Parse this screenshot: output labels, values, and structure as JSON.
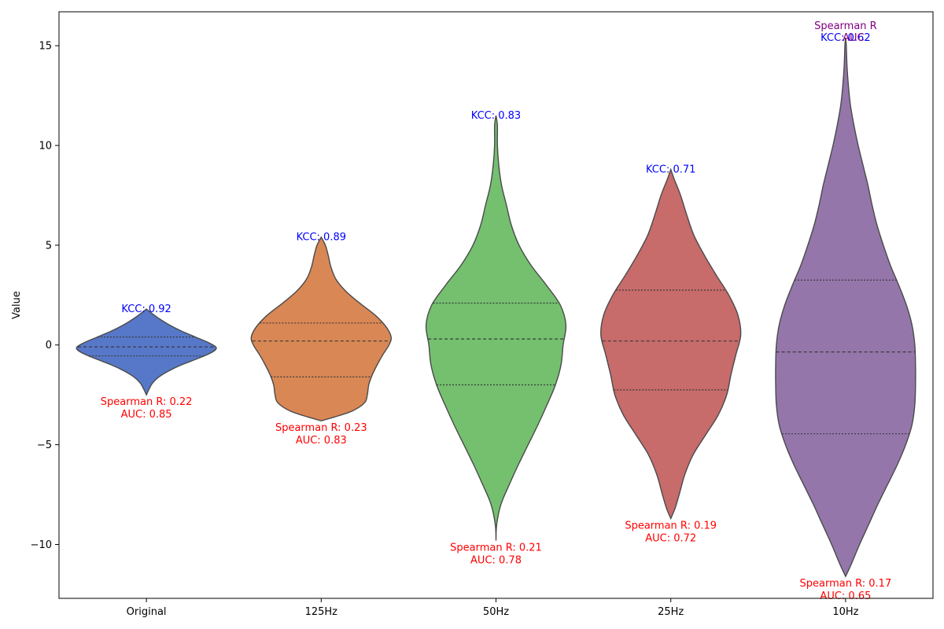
{
  "chart_data": {
    "type": "violin",
    "title": "",
    "xlabel": "",
    "ylabel": "Value",
    "ylim": [
      -12.7,
      16.7
    ],
    "yticks": [
      -10,
      -5,
      0,
      5,
      10,
      15
    ],
    "ytick_labels": [
      "−10",
      "−5",
      "0",
      "5",
      "10",
      "15"
    ],
    "categories": [
      "Original",
      "125Hz",
      "50Hz",
      "25Hz",
      "10Hz"
    ],
    "colors": [
      "#5778c8",
      "#d98755",
      "#74c06f",
      "#c76b6b",
      "#9476ab"
    ],
    "violins": [
      {
        "name": "Original",
        "min": -2.5,
        "max": 1.8,
        "q1": -0.55,
        "median": -0.1,
        "q3": 0.4,
        "profile": [
          [
            -2.5,
            0.0
          ],
          [
            -2.2,
            0.04
          ],
          [
            -1.9,
            0.09
          ],
          [
            -1.6,
            0.18
          ],
          [
            -1.3,
            0.32
          ],
          [
            -1.0,
            0.5
          ],
          [
            -0.7,
            0.72
          ],
          [
            -0.4,
            0.92
          ],
          [
            -0.15,
            1.0
          ],
          [
            0.1,
            0.9
          ],
          [
            0.4,
            0.7
          ],
          [
            0.7,
            0.5
          ],
          [
            1.0,
            0.33
          ],
          [
            1.3,
            0.19
          ],
          [
            1.55,
            0.09
          ],
          [
            1.8,
            0.0
          ]
        ]
      },
      {
        "name": "125Hz",
        "min": -3.8,
        "max": 5.4,
        "q1": -1.6,
        "median": 0.2,
        "q3": 1.1,
        "profile": [
          [
            -3.8,
            0.0
          ],
          [
            -3.6,
            0.2
          ],
          [
            -3.3,
            0.45
          ],
          [
            -2.9,
            0.62
          ],
          [
            -2.5,
            0.66
          ],
          [
            -2.0,
            0.68
          ],
          [
            -1.5,
            0.73
          ],
          [
            -1.0,
            0.8
          ],
          [
            -0.5,
            0.88
          ],
          [
            0.0,
            0.97
          ],
          [
            0.4,
            1.0
          ],
          [
            0.9,
            0.93
          ],
          [
            1.5,
            0.77
          ],
          [
            2.1,
            0.55
          ],
          [
            2.7,
            0.35
          ],
          [
            3.3,
            0.21
          ],
          [
            3.9,
            0.14
          ],
          [
            4.5,
            0.1
          ],
          [
            5.0,
            0.06
          ],
          [
            5.4,
            0.0
          ]
        ]
      },
      {
        "name": "50Hz",
        "min": -9.8,
        "max": 11.5,
        "q1": -2.0,
        "median": 0.3,
        "q3": 2.1,
        "profile": [
          [
            -9.8,
            0.0
          ],
          [
            -9.0,
            0.01
          ],
          [
            -8.0,
            0.07
          ],
          [
            -7.0,
            0.19
          ],
          [
            -6.0,
            0.32
          ],
          [
            -5.0,
            0.46
          ],
          [
            -4.0,
            0.6
          ],
          [
            -3.0,
            0.73
          ],
          [
            -2.0,
            0.85
          ],
          [
            -1.0,
            0.93
          ],
          [
            0.0,
            0.96
          ],
          [
            1.0,
            1.0
          ],
          [
            2.0,
            0.92
          ],
          [
            3.0,
            0.72
          ],
          [
            4.0,
            0.5
          ],
          [
            5.0,
            0.33
          ],
          [
            6.0,
            0.22
          ],
          [
            7.0,
            0.15
          ],
          [
            8.0,
            0.08
          ],
          [
            9.0,
            0.04
          ],
          [
            10.0,
            0.02
          ],
          [
            11.0,
            0.02
          ],
          [
            11.5,
            0.0
          ]
        ]
      },
      {
        "name": "25Hz",
        "min": -8.7,
        "max": 8.8,
        "q1": -2.25,
        "median": 0.2,
        "q3": 2.75,
        "profile": [
          [
            -8.7,
            0.0
          ],
          [
            -8.2,
            0.06
          ],
          [
            -7.5,
            0.12
          ],
          [
            -6.5,
            0.2
          ],
          [
            -5.5,
            0.32
          ],
          [
            -4.5,
            0.5
          ],
          [
            -3.5,
            0.68
          ],
          [
            -2.5,
            0.8
          ],
          [
            -1.5,
            0.86
          ],
          [
            -0.5,
            0.93
          ],
          [
            0.5,
            1.0
          ],
          [
            1.5,
            0.96
          ],
          [
            2.5,
            0.83
          ],
          [
            3.5,
            0.65
          ],
          [
            4.5,
            0.48
          ],
          [
            5.5,
            0.33
          ],
          [
            6.5,
            0.23
          ],
          [
            7.5,
            0.14
          ],
          [
            8.3,
            0.05
          ],
          [
            8.8,
            0.0
          ]
        ]
      },
      {
        "name": "10Hz",
        "min": -11.6,
        "max": 15.4,
        "q1": -4.45,
        "median": -0.35,
        "q3": 3.25,
        "profile": [
          [
            -11.6,
            0.0
          ],
          [
            -11.0,
            0.08
          ],
          [
            -10.0,
            0.2
          ],
          [
            -9.0,
            0.33
          ],
          [
            -8.0,
            0.46
          ],
          [
            -7.0,
            0.6
          ],
          [
            -6.0,
            0.74
          ],
          [
            -5.0,
            0.86
          ],
          [
            -4.0,
            0.95
          ],
          [
            -3.0,
            0.99
          ],
          [
            -2.0,
            1.0
          ],
          [
            -1.0,
            1.0
          ],
          [
            0.0,
            0.99
          ],
          [
            1.0,
            0.95
          ],
          [
            2.0,
            0.87
          ],
          [
            3.0,
            0.76
          ],
          [
            4.0,
            0.64
          ],
          [
            5.0,
            0.54
          ],
          [
            6.0,
            0.45
          ],
          [
            7.0,
            0.38
          ],
          [
            8.0,
            0.32
          ],
          [
            9.0,
            0.25
          ],
          [
            10.0,
            0.18
          ],
          [
            11.0,
            0.12
          ],
          [
            12.0,
            0.07
          ],
          [
            13.0,
            0.04
          ],
          [
            14.0,
            0.02
          ],
          [
            15.0,
            0.01
          ],
          [
            15.4,
            0.0
          ]
        ]
      }
    ],
    "annotations": [
      {
        "group": 0,
        "kcc": "KCC: 0.92",
        "spearman": "Spearman R: 0.22",
        "auc": "AUC: 0.85"
      },
      {
        "group": 1,
        "kcc": "KCC: 0.89",
        "spearman": "Spearman R: 0.23",
        "auc": "AUC: 0.83"
      },
      {
        "group": 2,
        "kcc": "KCC: 0.83",
        "spearman": "Spearman R: 0.21",
        "auc": "AUC: 0.78"
      },
      {
        "group": 3,
        "kcc": "KCC: 0.71",
        "spearman": "Spearman R: 0.19",
        "auc": "AUC: 0.72"
      },
      {
        "group": 4,
        "kcc": "KCC: 0.62",
        "spearman": "Spearman R: 0.17",
        "auc": "AUC: 0.65",
        "extra_top_label": "Spearman R",
        "extra_top_value": "AUC"
      }
    ],
    "annotation_colors": {
      "kcc": "#0000ff",
      "bottom": "#ff0000",
      "extra": "#800080"
    }
  }
}
